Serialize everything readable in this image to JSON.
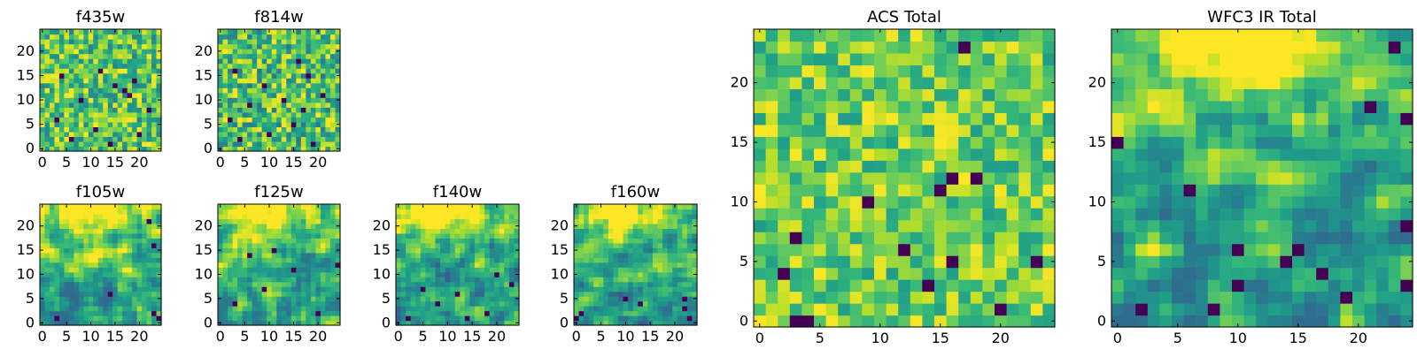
{
  "chart_data": [
    {
      "type": "heatmap",
      "title": "f435w",
      "xlabel": "",
      "ylabel": "",
      "grid_size": [
        25,
        25
      ],
      "xlim": [
        0,
        24
      ],
      "ylim": [
        0,
        24
      ],
      "x_ticks": [
        "0",
        "5",
        "10",
        "15",
        "20"
      ],
      "y_ticks": [
        "0",
        "5",
        "10",
        "15",
        "20"
      ],
      "colormap": "viridis",
      "pattern": "uniform-noise",
      "value_range": [
        0.45,
        1.0
      ],
      "dark_pixels": [
        [
          12,
          16
        ],
        [
          4,
          15
        ],
        [
          19,
          14
        ],
        [
          15,
          13
        ],
        [
          17,
          12
        ],
        [
          18,
          11
        ],
        [
          8,
          10
        ],
        [
          22,
          8
        ],
        [
          3,
          6
        ],
        [
          11,
          4
        ],
        [
          20,
          3
        ],
        [
          6,
          2
        ],
        [
          14,
          1
        ]
      ]
    },
    {
      "type": "heatmap",
      "title": "f814w",
      "xlabel": "",
      "ylabel": "",
      "grid_size": [
        25,
        25
      ],
      "xlim": [
        0,
        24
      ],
      "ylim": [
        0,
        24
      ],
      "x_ticks": [
        "0",
        "5",
        "10",
        "15",
        "20"
      ],
      "y_ticks": [
        "0",
        "5",
        "10",
        "15",
        "20"
      ],
      "colormap": "viridis",
      "pattern": "uniform-noise",
      "value_range": [
        0.4,
        1.0
      ],
      "dark_pixels": [
        [
          16,
          18
        ],
        [
          3,
          16
        ],
        [
          18,
          15
        ],
        [
          9,
          13
        ],
        [
          21,
          11
        ],
        [
          13,
          10
        ],
        [
          6,
          9
        ],
        [
          17,
          8
        ],
        [
          2,
          6
        ],
        [
          15,
          5
        ],
        [
          10,
          3
        ],
        [
          4,
          2
        ],
        [
          19,
          1
        ]
      ]
    },
    {
      "type": "heatmap",
      "title": "f105w",
      "xlabel": "",
      "ylabel": "",
      "grid_size": [
        25,
        25
      ],
      "xlim": [
        0,
        24
      ],
      "ylim": [
        0,
        24
      ],
      "x_ticks": [
        "0",
        "5",
        "10",
        "15",
        "20"
      ],
      "y_ticks": [
        "0",
        "5",
        "10",
        "15",
        "20"
      ],
      "colormap": "viridis",
      "pattern": "top-bright-smooth",
      "value_range": [
        0.35,
        1.0
      ],
      "dark_pixels": [
        [
          22,
          21
        ],
        [
          23,
          16
        ],
        [
          14,
          6
        ],
        [
          23,
          2
        ],
        [
          24,
          1
        ],
        [
          3,
          1
        ]
      ]
    },
    {
      "type": "heatmap",
      "title": "f125w",
      "xlabel": "",
      "ylabel": "",
      "grid_size": [
        25,
        25
      ],
      "xlim": [
        0,
        24
      ],
      "ylim": [
        0,
        24
      ],
      "x_ticks": [
        "0",
        "5",
        "10",
        "15",
        "20"
      ],
      "y_ticks": [
        "0",
        "5",
        "10",
        "15",
        "20"
      ],
      "colormap": "viridis",
      "pattern": "top-bright-smooth",
      "value_range": [
        0.4,
        1.0
      ],
      "dark_pixels": [
        [
          11,
          15
        ],
        [
          6,
          14
        ],
        [
          15,
          11
        ],
        [
          9,
          7
        ],
        [
          24,
          12
        ],
        [
          20,
          2
        ],
        [
          3,
          4
        ]
      ]
    },
    {
      "type": "heatmap",
      "title": "f140w",
      "xlabel": "",
      "ylabel": "",
      "grid_size": [
        25,
        25
      ],
      "xlim": [
        0,
        24
      ],
      "ylim": [
        0,
        24
      ],
      "x_ticks": [
        "0",
        "5",
        "10",
        "15",
        "20"
      ],
      "y_ticks": [
        "0",
        "5",
        "10",
        "15",
        "20"
      ],
      "colormap": "viridis",
      "pattern": "top-bright-smooth",
      "value_range": [
        0.3,
        1.0
      ],
      "dark_pixels": [
        [
          5,
          7
        ],
        [
          8,
          4
        ],
        [
          12,
          6
        ],
        [
          23,
          8
        ],
        [
          18,
          2
        ],
        [
          2,
          1
        ],
        [
          14,
          1
        ],
        [
          20,
          10
        ]
      ]
    },
    {
      "type": "heatmap",
      "title": "f160w",
      "xlabel": "",
      "ylabel": "",
      "grid_size": [
        25,
        25
      ],
      "xlim": [
        0,
        24
      ],
      "ylim": [
        0,
        24
      ],
      "x_ticks": [
        "0",
        "5",
        "10",
        "15",
        "20"
      ],
      "y_ticks": [
        "0",
        "5",
        "10",
        "15",
        "20"
      ],
      "colormap": "viridis",
      "pattern": "top-bright-smooth",
      "value_range": [
        0.3,
        1.0
      ],
      "dark_pixels": [
        [
          10,
          5
        ],
        [
          13,
          4
        ],
        [
          22,
          5
        ],
        [
          22,
          3
        ],
        [
          1,
          2
        ],
        [
          0,
          1
        ],
        [
          23,
          1
        ]
      ]
    },
    {
      "type": "heatmap",
      "title": "ACS Total",
      "xlabel": "",
      "ylabel": "",
      "grid_size": [
        25,
        25
      ],
      "xlim": [
        0,
        24
      ],
      "ylim": [
        0,
        24
      ],
      "x_ticks": [
        "0",
        "5",
        "10",
        "15",
        "20"
      ],
      "y_ticks": [
        "0",
        "5",
        "10",
        "15",
        "20"
      ],
      "colormap": "viridis",
      "pattern": "uniform-noise",
      "value_range": [
        0.55,
        1.0
      ],
      "dark_pixels": [
        [
          17,
          23
        ],
        [
          16,
          12
        ],
        [
          18,
          12
        ],
        [
          15,
          11
        ],
        [
          9,
          10
        ],
        [
          3,
          7
        ],
        [
          12,
          6
        ],
        [
          16,
          5
        ],
        [
          2,
          4
        ],
        [
          23,
          5
        ],
        [
          20,
          1
        ],
        [
          3,
          0
        ],
        [
          4,
          0
        ],
        [
          14,
          3
        ]
      ]
    },
    {
      "type": "heatmap",
      "title": "WFC3 IR Total",
      "xlabel": "",
      "ylabel": "",
      "grid_size": [
        25,
        25
      ],
      "xlim": [
        0,
        24
      ],
      "ylim": [
        0,
        24
      ],
      "x_ticks": [
        "0",
        "5",
        "10",
        "15",
        "20"
      ],
      "y_ticks": [
        "0",
        "5",
        "10",
        "15",
        "20"
      ],
      "colormap": "viridis",
      "pattern": "top-bright-smooth",
      "value_range": [
        0.35,
        1.0
      ],
      "dark_pixels": [
        [
          23,
          23
        ],
        [
          21,
          18
        ],
        [
          24,
          17
        ],
        [
          0,
          15
        ],
        [
          6,
          11
        ],
        [
          24,
          8
        ],
        [
          10,
          6
        ],
        [
          15,
          6
        ],
        [
          14,
          5
        ],
        [
          17,
          4
        ],
        [
          10,
          3
        ],
        [
          8,
          1
        ],
        [
          2,
          1
        ],
        [
          19,
          2
        ],
        [
          24,
          3
        ]
      ]
    }
  ]
}
